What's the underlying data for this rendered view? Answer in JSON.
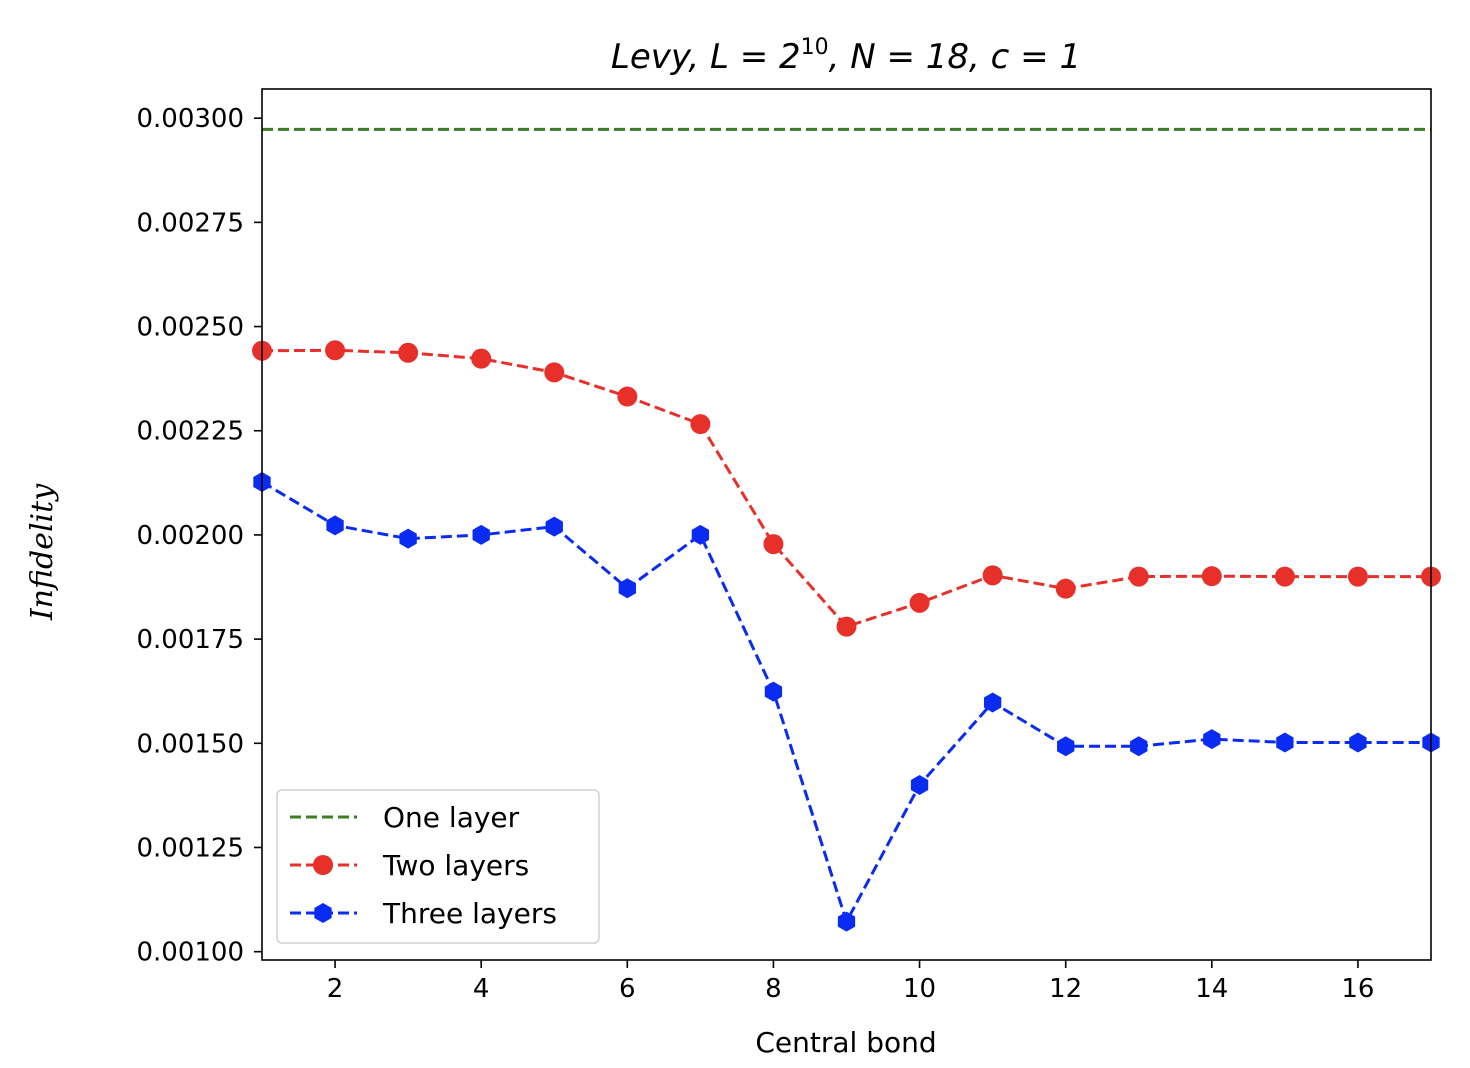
{
  "chart_data": {
    "type": "line",
    "title": "Levy, L = 2^10, N = 18, c = 1",
    "title_parts": {
      "prefix": "Levy, L = 2",
      "exponent": "10",
      "suffix": ", N = 18, c = 1"
    },
    "xlabel": "Central bond",
    "ylabel": "Infidelity",
    "xlim": [
      1,
      17
    ],
    "ylim": [
      0.00098,
      0.00307
    ],
    "xticks": [
      2,
      4,
      6,
      8,
      10,
      12,
      14,
      16
    ],
    "xtick_labels": [
      "2",
      "4",
      "6",
      "8",
      "10",
      "12",
      "14",
      "16"
    ],
    "yticks": [
      0.001,
      0.00125,
      0.0015,
      0.00175,
      0.002,
      0.00225,
      0.0025,
      0.00275,
      0.003
    ],
    "ytick_labels": [
      "0.00100",
      "0.00125",
      "0.00150",
      "0.00175",
      "0.00200",
      "0.00225",
      "0.00250",
      "0.00275",
      "0.00300"
    ],
    "grid": false,
    "legend_position": "lower-left",
    "series": [
      {
        "name": "One layer",
        "style": "dashed",
        "marker": "none",
        "color": "#3a7d22",
        "x": [
          1,
          17
        ],
        "values": [
          0.002973,
          0.002973
        ]
      },
      {
        "name": "Two layers",
        "style": "dashed",
        "marker": "circle",
        "color": "#e8302a",
        "x": [
          1,
          2,
          3,
          4,
          5,
          6,
          7,
          8,
          9,
          10,
          11,
          12,
          13,
          14,
          15,
          16,
          17
        ],
        "values": [
          0.002442,
          0.002443,
          0.002437,
          0.002423,
          0.00239,
          0.002332,
          0.002266,
          0.001978,
          0.00178,
          0.001837,
          0.001903,
          0.001871,
          0.0019,
          0.001901,
          0.0019,
          0.0019,
          0.0019
        ]
      },
      {
        "name": "Three layers",
        "style": "dashed",
        "marker": "hexagon",
        "color": "#0a2cf2",
        "x": [
          1,
          2,
          3,
          4,
          5,
          6,
          7,
          8,
          9,
          10,
          11,
          12,
          13,
          14,
          15,
          16,
          17
        ],
        "values": [
          0.002127,
          0.002023,
          0.001991,
          0.002,
          0.00202,
          0.001872,
          0.002,
          0.001624,
          0.001072,
          0.0014,
          0.001598,
          0.001493,
          0.001493,
          0.00151,
          0.001502,
          0.001502,
          0.001502
        ]
      }
    ]
  }
}
